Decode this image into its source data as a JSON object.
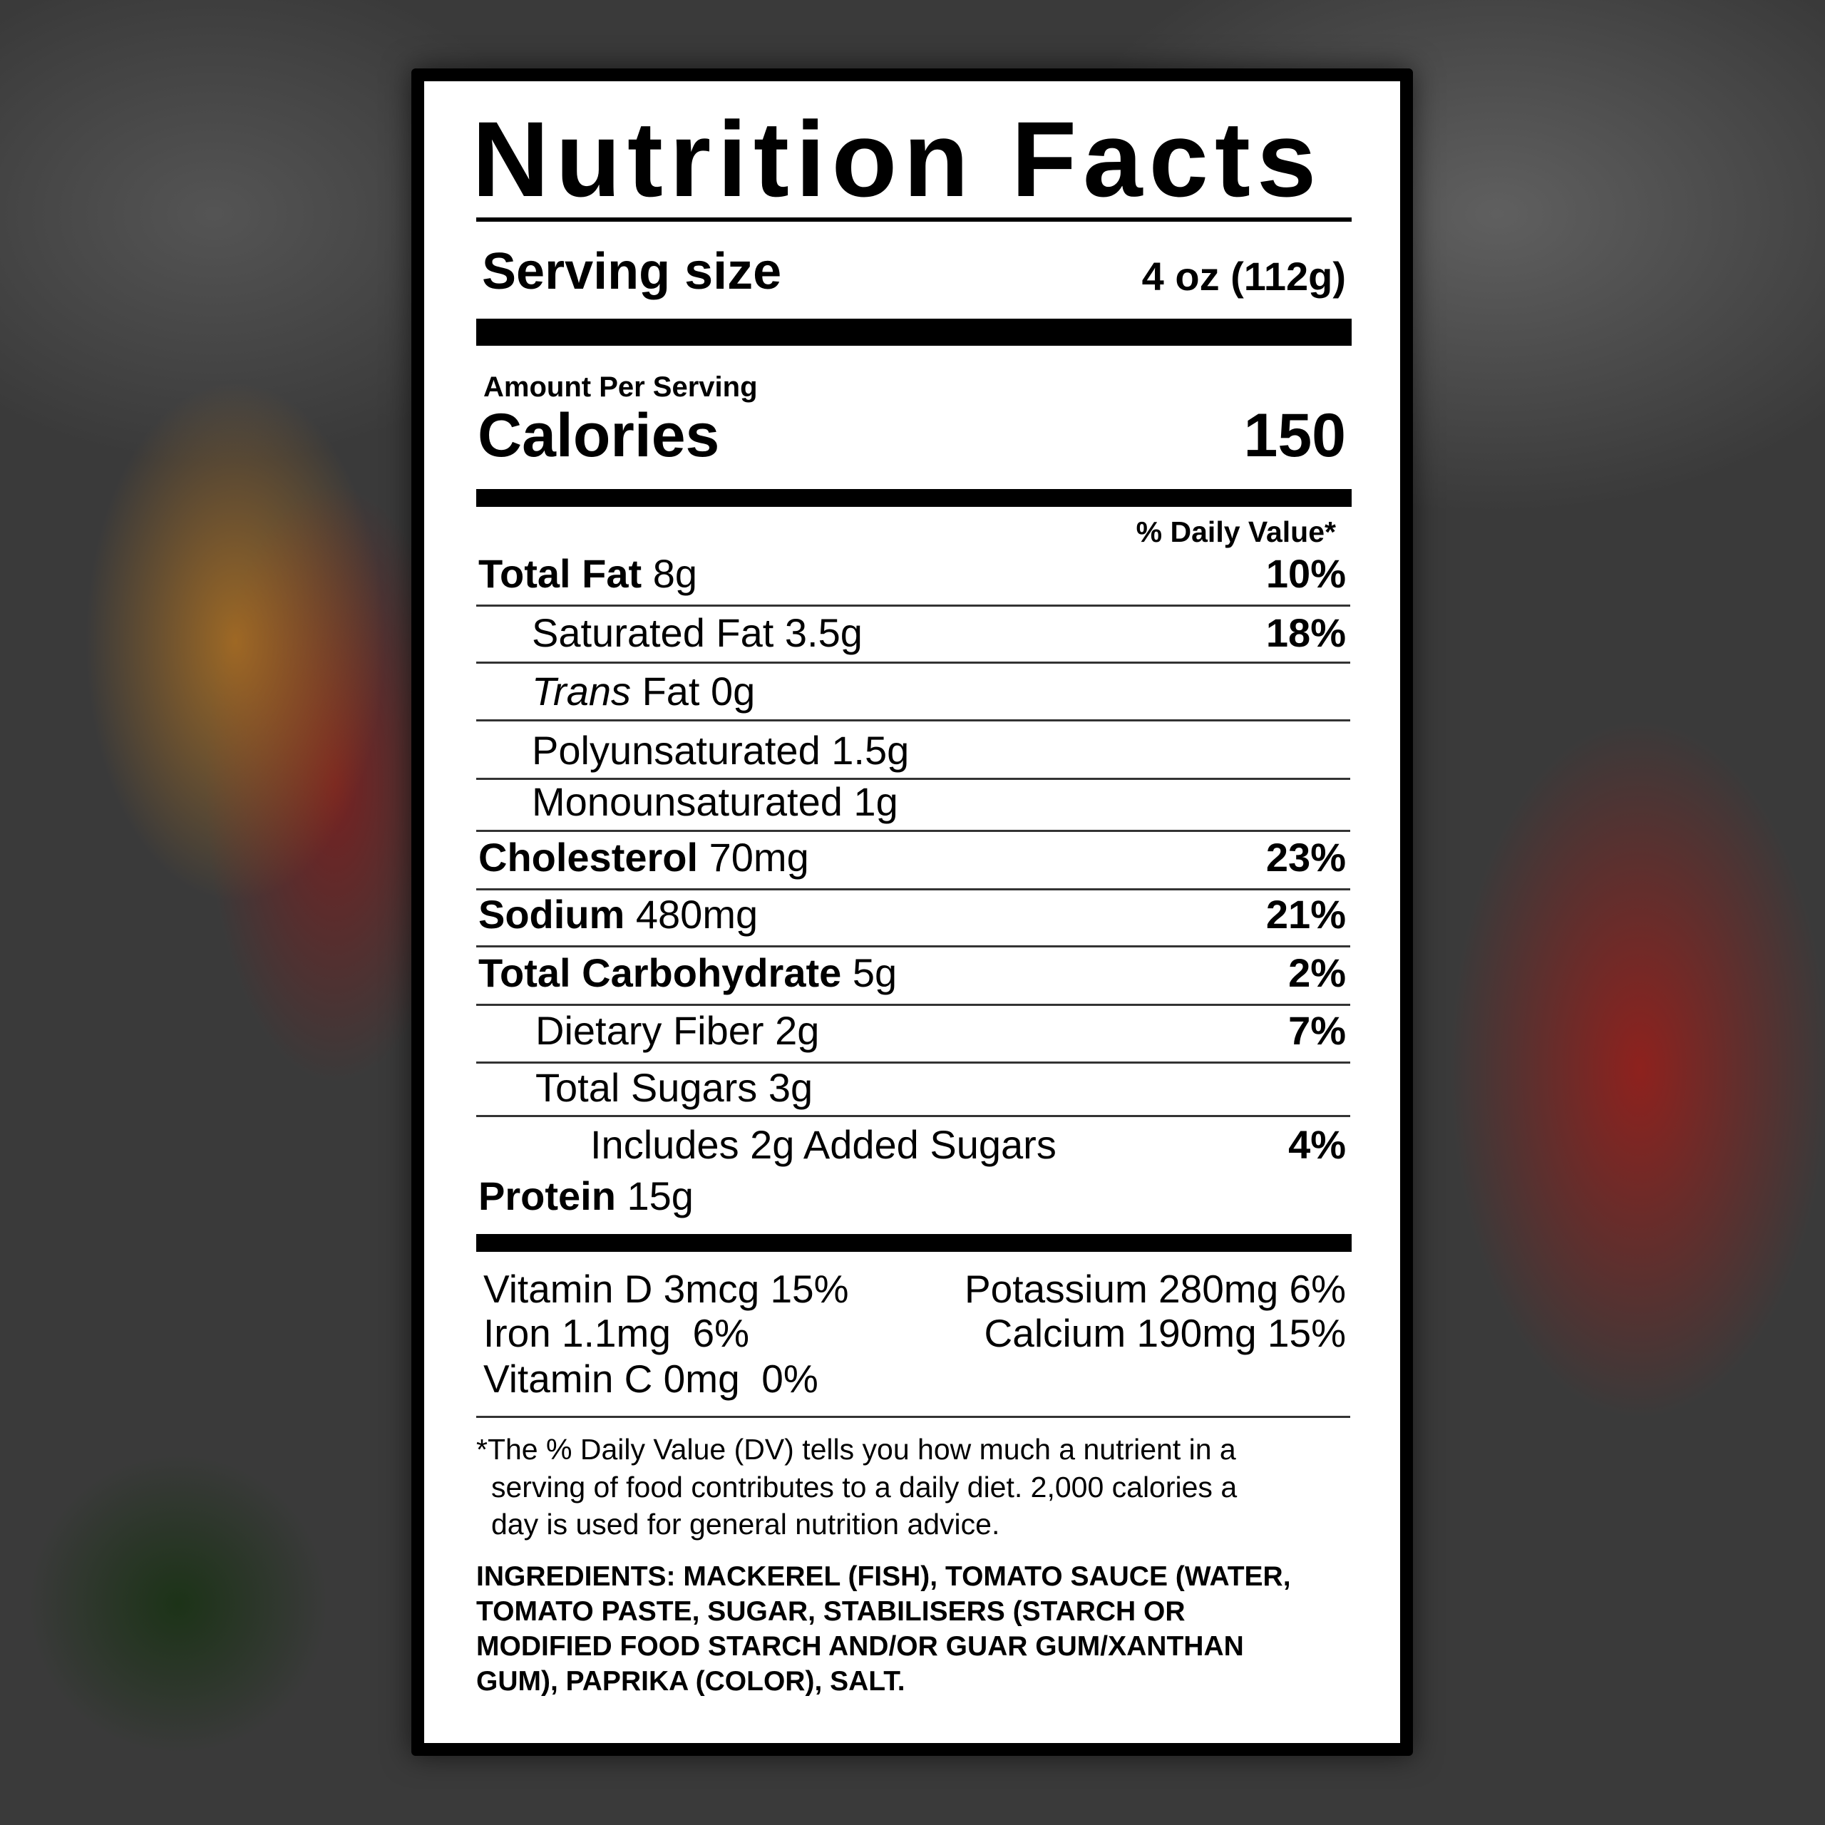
{
  "title": "Nutrition Facts",
  "serving": {
    "label": "Serving size",
    "value": "4 oz (112g)"
  },
  "amount_per_serving": "Amount Per Serving",
  "calories": {
    "label": "Calories",
    "value": "150"
  },
  "daily_value_header": "% Daily Value*",
  "nutrients": [
    {
      "label": "Total Fat",
      "amount": "8g",
      "dv": "10%",
      "bold": true,
      "indent": 0
    },
    {
      "label": "Saturated Fat",
      "amount": "3.5g",
      "dv": "18%",
      "bold": false,
      "indent": 1
    },
    {
      "label": "Trans",
      "amount": "Fat 0g",
      "dv": "",
      "bold": false,
      "italic": true,
      "indent": 1
    },
    {
      "label": "Polyunsaturated",
      "amount": "1.5g",
      "dv": "",
      "bold": false,
      "indent": 1
    },
    {
      "label": "Monounsaturated",
      "amount": "1g",
      "dv": "",
      "bold": false,
      "indent": 1
    },
    {
      "label": "Cholesterol",
      "amount": "70mg",
      "dv": "23%",
      "bold": true,
      "indent": 0
    },
    {
      "label": "Sodium",
      "amount": "480mg",
      "dv": "21%",
      "bold": true,
      "indent": 0
    },
    {
      "label": "Total Carbohydrate",
      "amount": "5g",
      "dv": "2%",
      "bold": true,
      "indent": 0
    },
    {
      "label": "Dietary Fiber",
      "amount": "2g",
      "dv": "7%",
      "bold": false,
      "indent": 1
    },
    {
      "label": "Total Sugars",
      "amount": "3g",
      "dv": "",
      "bold": false,
      "indent": 1
    },
    {
      "label": "Includes 2g Added Sugars",
      "amount": "",
      "dv": "4%",
      "bold": false,
      "indent": 2
    },
    {
      "label": "Protein",
      "amount": "15g",
      "dv": "",
      "bold": true,
      "indent": 0
    }
  ],
  "vitamins_left": [
    "Vitamin D 3mcg 15%",
    "Iron 1.1mg  6%",
    "Vitamin C 0mg  0%"
  ],
  "vitamins_right": [
    "Potassium 280mg 6%",
    "Calcium 190mg 15%"
  ],
  "footnote": [
    "*The % Daily Value (DV) tells you how much a nutrient in a",
    "serving of food contributes to a daily diet. 2,000 calories a",
    "day is used for general nutrition advice."
  ],
  "ingredients": [
    "INGREDIENTS: MACKEREL (FISH), TOMATO SAUCE (WATER,",
    "TOMATO PASTE, SUGAR, STABILISERS (STARCH OR",
    "MODIFIED FOOD STARCH AND/OR GUAR GUM/XANTHAN",
    "GUM), PAPRIKA (COLOR), SALT."
  ]
}
